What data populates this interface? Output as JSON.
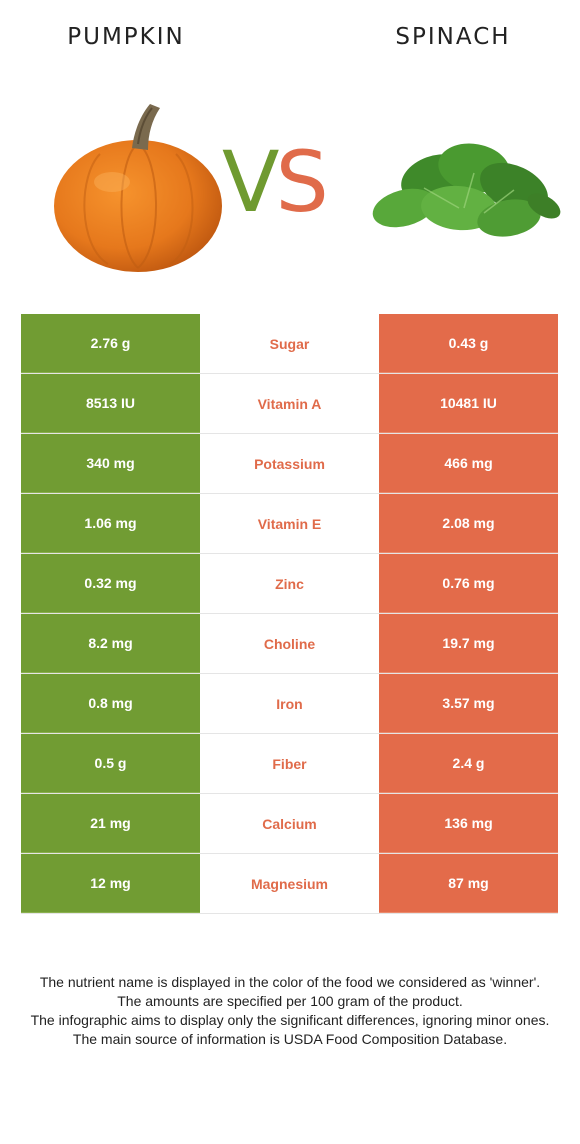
{
  "foods": {
    "left": {
      "name": "PUMPKIN",
      "color": "#719c33"
    },
    "right": {
      "name": "SPINACH",
      "color": "#e36b4a"
    }
  },
  "vs": {
    "v": "V",
    "s": "S"
  },
  "rows": [
    {
      "left": "2.76 g",
      "nutrient": "Sugar",
      "right": "0.43 g"
    },
    {
      "left": "8513 IU",
      "nutrient": "Vitamin A",
      "right": "10481 IU"
    },
    {
      "left": "340 mg",
      "nutrient": "Potassium",
      "right": "466 mg"
    },
    {
      "left": "1.06 mg",
      "nutrient": "Vitamin E",
      "right": "2.08 mg"
    },
    {
      "left": "0.32 mg",
      "nutrient": "Zinc",
      "right": "0.76 mg"
    },
    {
      "left": "8.2 mg",
      "nutrient": "Choline",
      "right": "19.7 mg"
    },
    {
      "left": "0.8 mg",
      "nutrient": "Iron",
      "right": "3.57 mg"
    },
    {
      "left": "0.5 g",
      "nutrient": "Fiber",
      "right": "2.4 g"
    },
    {
      "left": "21 mg",
      "nutrient": "Calcium",
      "right": "136 mg"
    },
    {
      "left": "12 mg",
      "nutrient": "Magnesium",
      "right": "87 mg"
    }
  ],
  "footnote": [
    "The nutrient name is displayed in the color of the food we considered as 'winner'.",
    "The amounts are specified per 100 gram of the product.",
    "The infographic aims to display only the significant differences, ignoring minor ones.",
    "The main source of information is USDA Food Composition Database."
  ]
}
